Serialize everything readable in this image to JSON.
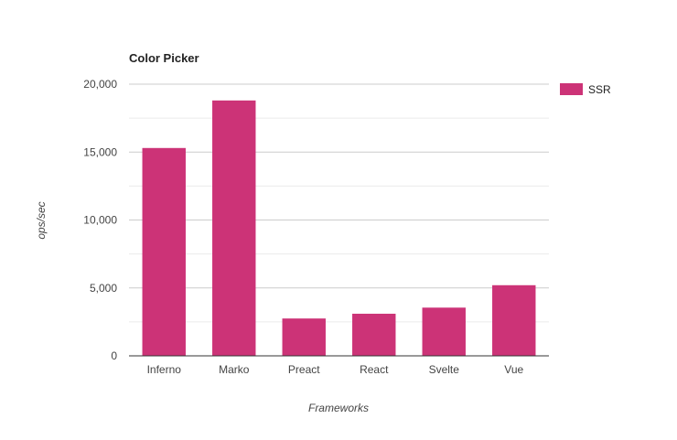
{
  "chart_data": {
    "type": "bar",
    "title": "Color Picker",
    "xlabel": "Frameworks",
    "ylabel": "ops/sec",
    "categories": [
      "Inferno",
      "Marko",
      "Preact",
      "React",
      "Svelte",
      "Vue"
    ],
    "series": [
      {
        "name": "SSR",
        "values": [
          15300,
          18800,
          2750,
          3100,
          3550,
          5200
        ],
        "color": "#cc3377"
      }
    ],
    "ylim": [
      0,
      20000
    ],
    "yticks": [
      0,
      5000,
      10000,
      15000,
      20000
    ],
    "ytick_labels": [
      "0",
      "5,000",
      "10,000",
      "15,000",
      "20,000"
    ],
    "grid": true,
    "legend_position": "right"
  }
}
